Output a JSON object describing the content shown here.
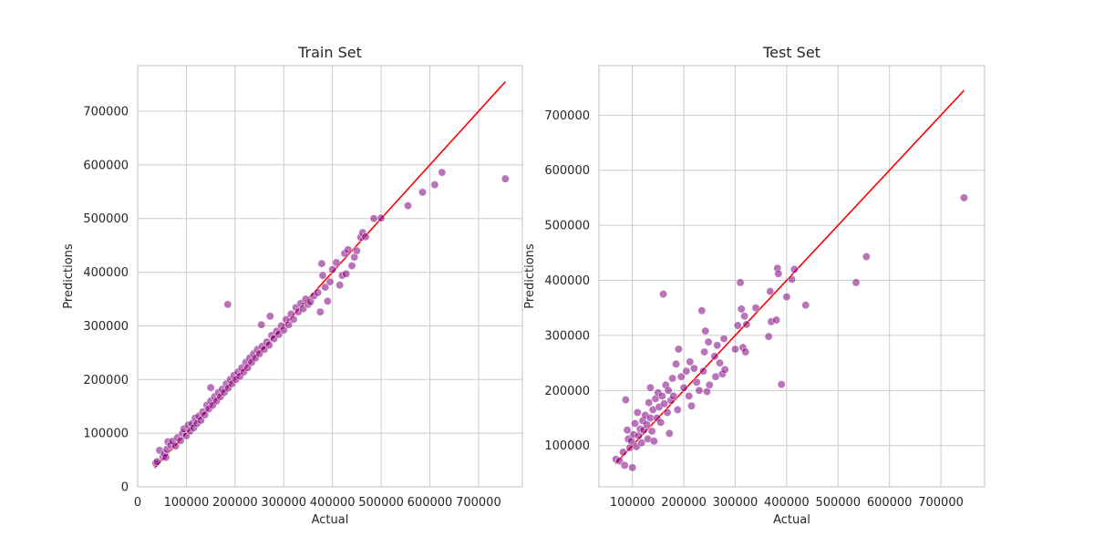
{
  "colors": {
    "points": "#800080",
    "line": "#ff0000",
    "grid": "#cccccc"
  },
  "chart_data": [
    {
      "type": "scatter",
      "title": "Train Set",
      "xlabel": "Actual",
      "ylabel": "Predictions",
      "xlim": [
        0,
        790000
      ],
      "ylim": [
        0,
        785000
      ],
      "xticks": [
        0,
        100000,
        200000,
        300000,
        400000,
        500000,
        600000,
        700000
      ],
      "yticks": [
        0,
        100000,
        200000,
        300000,
        400000,
        500000,
        600000,
        700000
      ],
      "grid": true,
      "reference_line": {
        "x": [
          34900,
          755000
        ],
        "y": [
          34900,
          755000
        ]
      },
      "series": [
        {
          "points": [
            [
              37000,
              44000
            ],
            [
              40000,
              47000
            ],
            [
              45000,
              68000
            ],
            [
              52000,
              56000
            ],
            [
              55000,
              62000
            ],
            [
              58000,
              55000
            ],
            [
              60000,
              70000
            ],
            [
              62000,
              84000
            ],
            [
              68000,
              78000
            ],
            [
              72000,
              85000
            ],
            [
              78000,
              76000
            ],
            [
              82000,
              92000
            ],
            [
              88000,
              86000
            ],
            [
              92000,
              100000
            ],
            [
              95000,
              108000
            ],
            [
              100000,
              95000
            ],
            [
              104000,
              115000
            ],
            [
              108000,
              104000
            ],
            [
              112000,
              118000
            ],
            [
              115000,
              110000
            ],
            [
              118000,
              128000
            ],
            [
              122000,
              118000
            ],
            [
              126000,
              132000
            ],
            [
              130000,
              124000
            ],
            [
              134000,
              140000
            ],
            [
              138000,
              134000
            ],
            [
              142000,
              152000
            ],
            [
              146000,
              145000
            ],
            [
              150000,
              160000
            ],
            [
              150000,
              185000
            ],
            [
              154000,
              152000
            ],
            [
              158000,
              168000
            ],
            [
              162000,
              160000
            ],
            [
              166000,
              176000
            ],
            [
              170000,
              168000
            ],
            [
              174000,
              182000
            ],
            [
              178000,
              176000
            ],
            [
              182000,
              192000
            ],
            [
              185000,
              340000
            ],
            [
              186000,
              184000
            ],
            [
              190000,
              200000
            ],
            [
              194000,
              192000
            ],
            [
              198000,
              208000
            ],
            [
              202000,
              200000
            ],
            [
              206000,
              214000
            ],
            [
              210000,
              206000
            ],
            [
              214000,
              222000
            ],
            [
              218000,
              214000
            ],
            [
              222000,
              232000
            ],
            [
              226000,
              222000
            ],
            [
              230000,
              240000
            ],
            [
              234000,
              232000
            ],
            [
              238000,
              248000
            ],
            [
              242000,
              240000
            ],
            [
              246000,
              256000
            ],
            [
              250000,
              248000
            ],
            [
              254000,
              302000
            ],
            [
              256000,
              262000
            ],
            [
              260000,
              256000
            ],
            [
              265000,
              270000
            ],
            [
              270000,
              264000
            ],
            [
              272000,
              318000
            ],
            [
              275000,
              282000
            ],
            [
              280000,
              276000
            ],
            [
              285000,
              290000
            ],
            [
              290000,
              284000
            ],
            [
              295000,
              300000
            ],
            [
              300000,
              292000
            ],
            [
              305000,
              312000
            ],
            [
              310000,
              302000
            ],
            [
              315000,
              322000
            ],
            [
              320000,
              312000
            ],
            [
              325000,
              334000
            ],
            [
              330000,
              326000
            ],
            [
              335000,
              342000
            ],
            [
              340000,
              332000
            ],
            [
              345000,
              350000
            ],
            [
              350000,
              340000
            ],
            [
              355000,
              345000
            ],
            [
              362000,
              356000
            ],
            [
              370000,
              362000
            ],
            [
              375000,
              326000
            ],
            [
              378000,
              416000
            ],
            [
              380000,
              394000
            ],
            [
              385000,
              372000
            ],
            [
              390000,
              346000
            ],
            [
              395000,
              382000
            ],
            [
              400000,
              405000
            ],
            [
              408000,
              418000
            ],
            [
              415000,
              376000
            ],
            [
              420000,
              394000
            ],
            [
              425000,
              435000
            ],
            [
              428000,
              397000
            ],
            [
              432000,
              442000
            ],
            [
              440000,
              412000
            ],
            [
              445000,
              428000
            ],
            [
              450000,
              440000
            ],
            [
              458000,
              465000
            ],
            [
              462000,
              474000
            ],
            [
              468000,
              466000
            ],
            [
              485000,
              500000
            ],
            [
              500000,
              501000
            ],
            [
              555000,
              524000
            ],
            [
              585000,
              549000
            ],
            [
              610000,
              563000
            ],
            [
              625000,
              586000
            ],
            [
              755000,
              574000
            ]
          ]
        }
      ]
    },
    {
      "type": "scatter",
      "title": "Test Set",
      "xlabel": "Actual",
      "ylabel": "Predictions",
      "xlim": [
        35000,
        785000
      ],
      "ylim": [
        25000,
        790000
      ],
      "xticks": [
        100000,
        200000,
        300000,
        400000,
        500000,
        600000,
        700000
      ],
      "yticks": [
        100000,
        200000,
        300000,
        400000,
        500000,
        600000,
        700000
      ],
      "grid": true,
      "reference_line": {
        "x": [
          67000,
          745000
        ],
        "y": [
          67000,
          745000
        ]
      },
      "series": [
        {
          "points": [
            [
              68000,
              75000
            ],
            [
              75000,
              72000
            ],
            [
              82000,
              88000
            ],
            [
              85000,
              64000
            ],
            [
              87000,
              183000
            ],
            [
              90000,
              128000
            ],
            [
              92000,
              112000
            ],
            [
              95000,
              96000
            ],
            [
              98000,
              108000
            ],
            [
              100000,
              60000
            ],
            [
              102000,
              120000
            ],
            [
              105000,
              140000
            ],
            [
              108000,
              98000
            ],
            [
              110000,
              160000
            ],
            [
              112000,
              118000
            ],
            [
              115000,
              130000
            ],
            [
              118000,
              105000
            ],
            [
              120000,
              145000
            ],
            [
              122000,
              128000
            ],
            [
              125000,
              155000
            ],
            [
              128000,
              138000
            ],
            [
              130000,
              112000
            ],
            [
              132000,
              178000
            ],
            [
              135000,
              150000
            ],
            [
              135000,
              205000
            ],
            [
              138000,
              126000
            ],
            [
              140000,
              165000
            ],
            [
              142000,
              108000
            ],
            [
              145000,
              185000
            ],
            [
              148000,
              150000
            ],
            [
              150000,
              196000
            ],
            [
              152000,
              170000
            ],
            [
              155000,
              142000
            ],
            [
              158000,
              190000
            ],
            [
              160000,
              375000
            ],
            [
              162000,
              176000
            ],
            [
              165000,
              210000
            ],
            [
              168000,
              160000
            ],
            [
              170000,
              200000
            ],
            [
              172000,
              122000
            ],
            [
              175000,
              182000
            ],
            [
              178000,
              222000
            ],
            [
              180000,
              190000
            ],
            [
              185000,
              248000
            ],
            [
              188000,
              165000
            ],
            [
              190000,
              275000
            ],
            [
              195000,
              225000
            ],
            [
              200000,
              205000
            ],
            [
              205000,
              235000
            ],
            [
              210000,
              190000
            ],
            [
              212000,
              252000
            ],
            [
              215000,
              172000
            ],
            [
              220000,
              240000
            ],
            [
              225000,
              215000
            ],
            [
              230000,
              200000
            ],
            [
              235000,
              345000
            ],
            [
              238000,
              235000
            ],
            [
              240000,
              270000
            ],
            [
              242000,
              308000
            ],
            [
              245000,
              198000
            ],
            [
              248000,
              288000
            ],
            [
              250000,
              210000
            ],
            [
              260000,
              262000
            ],
            [
              262000,
              225000
            ],
            [
              265000,
              282000
            ],
            [
              270000,
              250000
            ],
            [
              275000,
              230000
            ],
            [
              278000,
              294000
            ],
            [
              280000,
              238000
            ],
            [
              300000,
              275000
            ],
            [
              305000,
              318000
            ],
            [
              310000,
              396000
            ],
            [
              312000,
              348000
            ],
            [
              315000,
              278000
            ],
            [
              318000,
              335000
            ],
            [
              320000,
              270000
            ],
            [
              322000,
              320000
            ],
            [
              340000,
              350000
            ],
            [
              365000,
              298000
            ],
            [
              368000,
              380000
            ],
            [
              370000,
              325000
            ],
            [
              380000,
              328000
            ],
            [
              382000,
              422000
            ],
            [
              384000,
              412000
            ],
            [
              390000,
              211000
            ],
            [
              400000,
              370000
            ],
            [
              410000,
              402000
            ],
            [
              415000,
              420000
            ],
            [
              437000,
              355000
            ],
            [
              535000,
              396000
            ],
            [
              555000,
              443000
            ],
            [
              745000,
              550000
            ]
          ]
        }
      ]
    }
  ]
}
